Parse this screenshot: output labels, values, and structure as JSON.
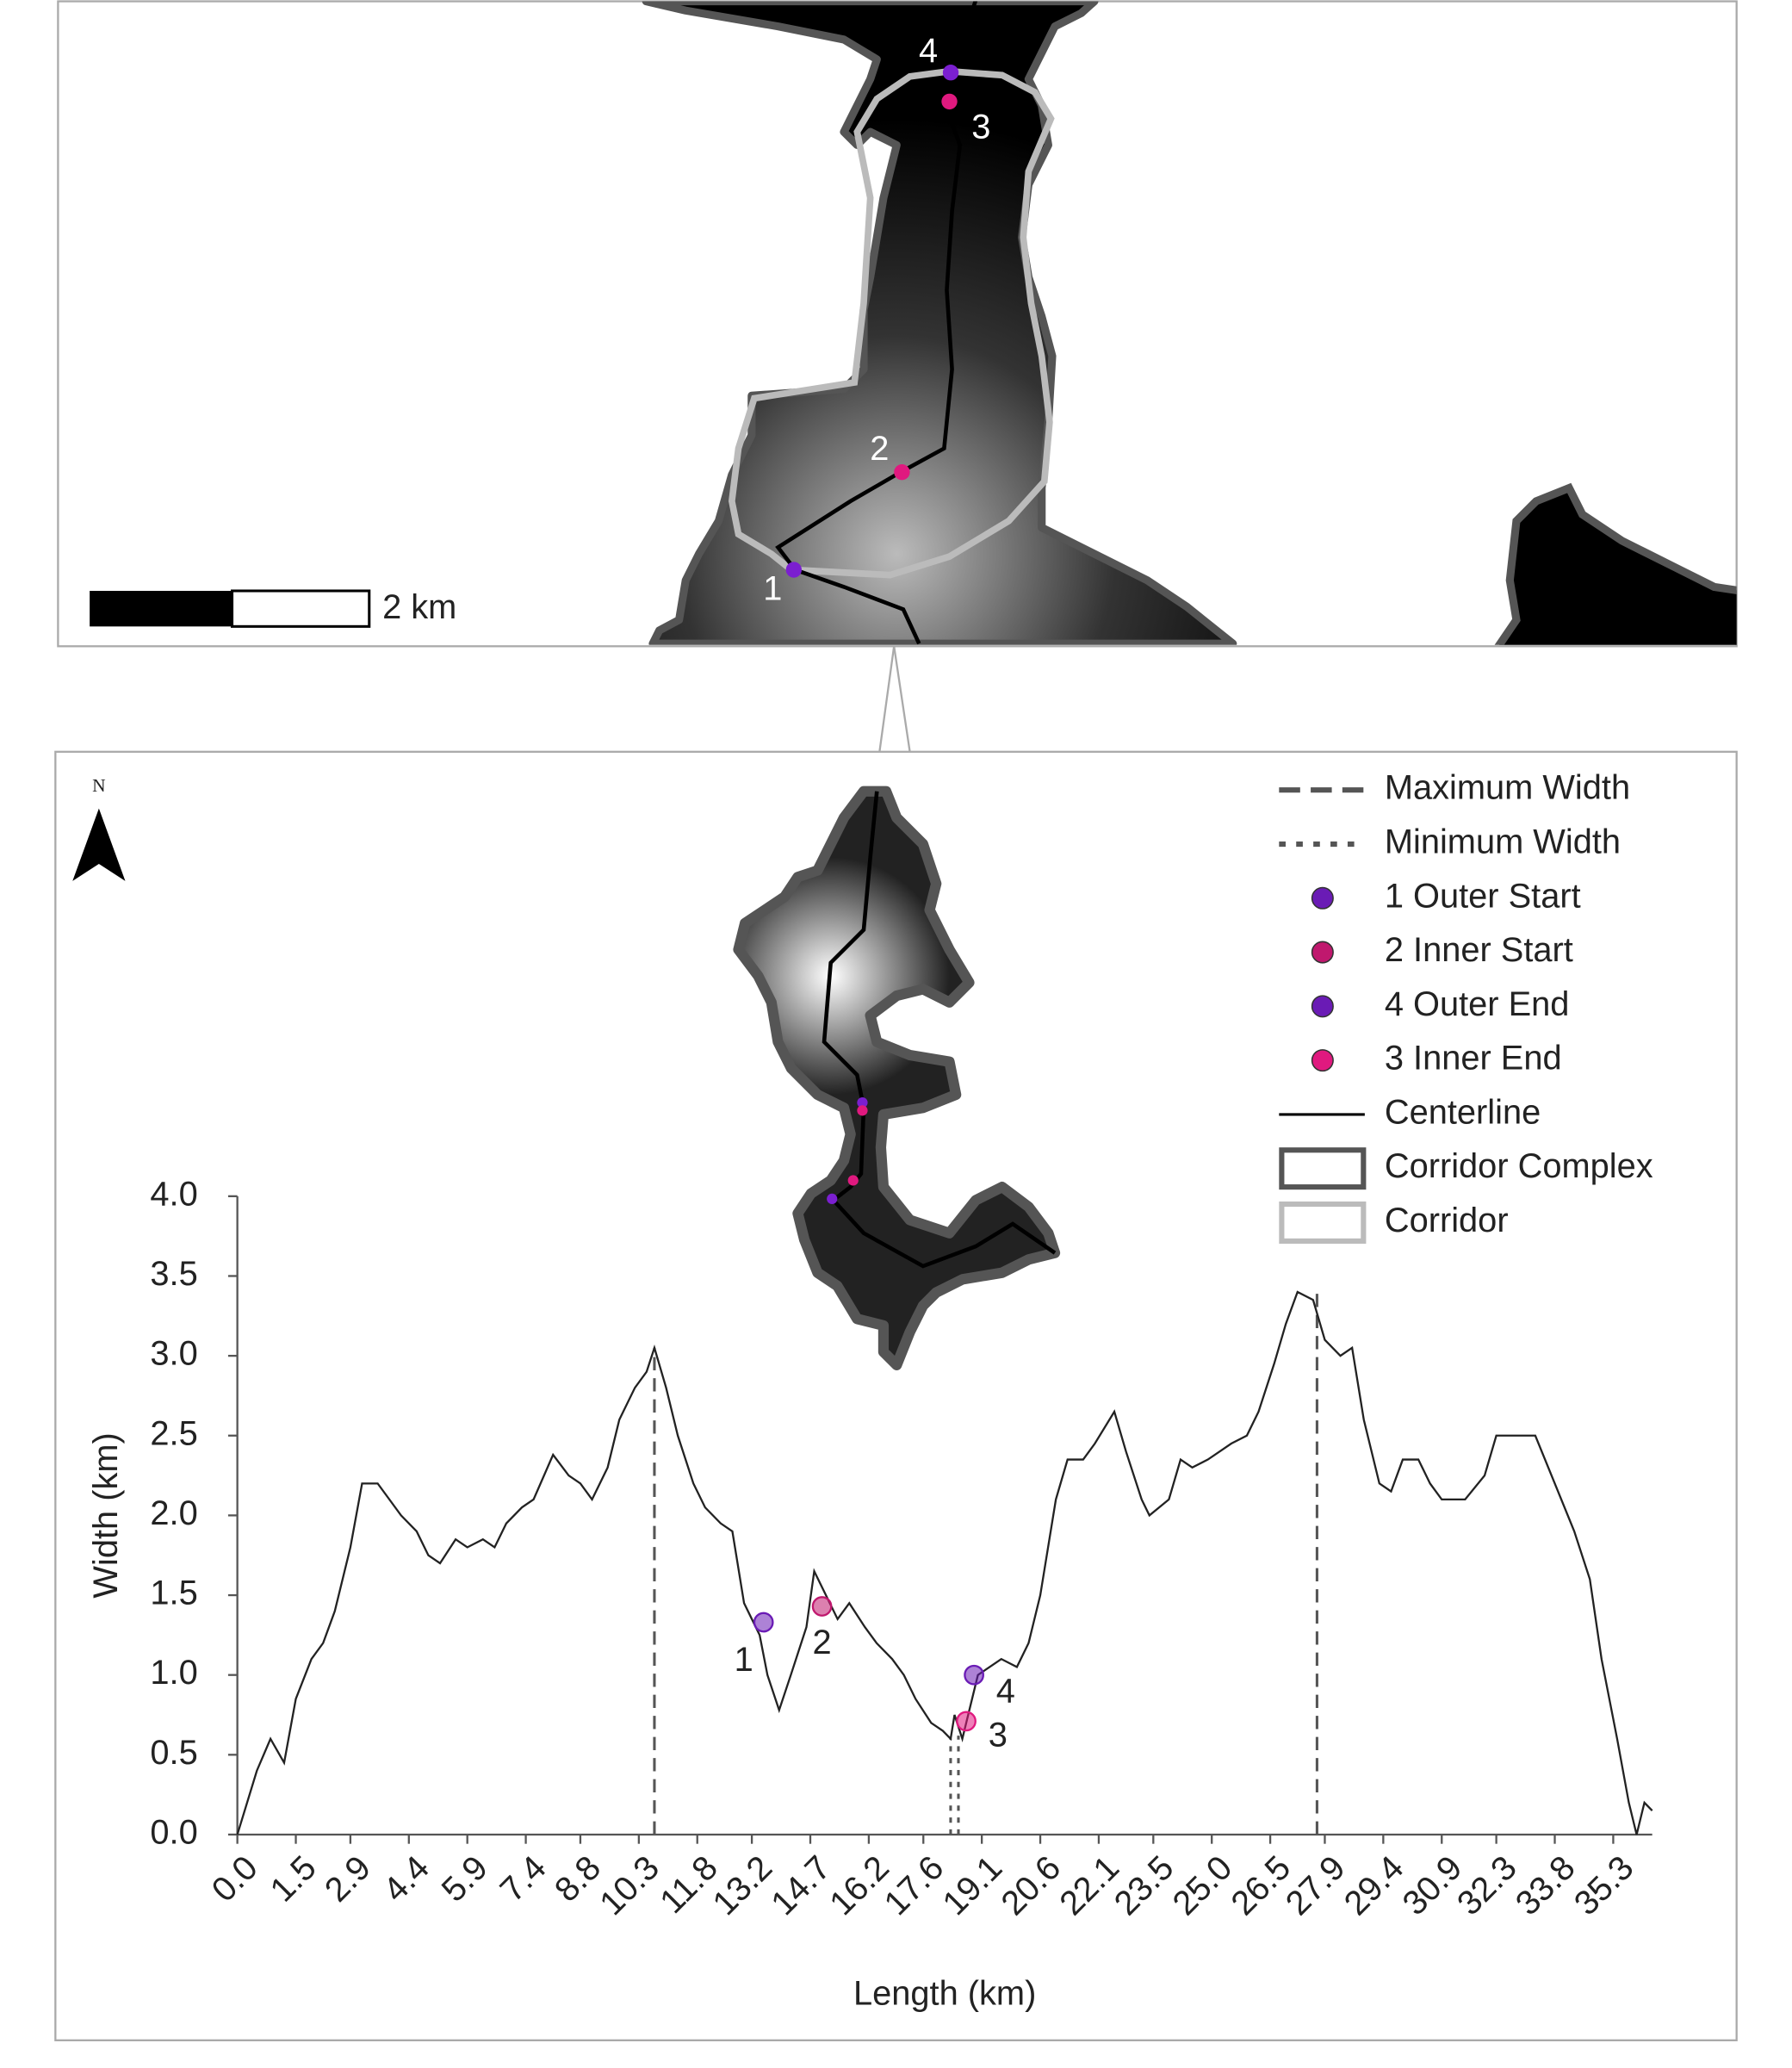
{
  "chart_data": {
    "type": "line",
    "x_label": "Length (km)",
    "y_label": "Width (km)",
    "xlim": [
      0,
      36.3
    ],
    "ylim": [
      0,
      4
    ],
    "xticks": [
      {
        "value": 0,
        "label": "0.0"
      },
      1.5,
      2.9,
      4.4,
      5.9,
      7.4,
      8.8,
      10.3,
      11.8,
      13.2,
      14.7,
      16.2,
      17.6,
      19.1,
      20.6,
      22.1,
      23.5,
      {
        "value": 25,
        "label": "25.0"
      },
      26.5,
      27.9,
      29.4,
      30.9,
      32.3,
      33.8,
      35.3
    ],
    "yticks": [
      {
        "value": 0,
        "label": "0.0"
      },
      0.5,
      {
        "value": 1,
        "label": "1.0"
      },
      1.5,
      {
        "value": 2,
        "label": "2.0"
      },
      2.5,
      {
        "value": 3,
        "label": "3.0"
      },
      3.5,
      {
        "value": 4,
        "label": "4.0"
      }
    ],
    "series": [
      {
        "color": "#222222",
        "x": [
          0,
          0.5,
          0.85,
          1.2,
          1.5,
          1.9,
          2.2,
          2.5,
          2.9,
          3.2,
          3.6,
          3.9,
          4.2,
          4.6,
          4.9,
          5.2,
          5.6,
          5.9,
          6.3,
          6.6,
          6.9,
          7.3,
          7.6,
          8.1,
          8.5,
          8.8,
          9.1,
          9.5,
          9.8,
          10.2,
          10.5,
          10.7,
          11.0,
          11.3,
          11.7,
          12.0,
          12.4,
          12.7,
          13.0,
          13.4,
          13.6,
          13.9,
          14.2,
          14.6,
          14.8,
          15.1,
          15.4,
          15.7,
          16.1,
          16.4,
          16.8,
          17.1,
          17.4,
          17.8,
          18.1,
          18.3,
          18.4,
          18.6,
          19.0,
          19.3,
          19.6,
          20.0,
          20.3,
          20.6,
          21.0,
          21.3,
          21.7,
          22.0,
          22.5,
          22.8,
          23.2,
          23.4,
          23.9,
          24.2,
          24.5,
          24.9,
          25.2,
          25.5,
          25.9,
          26.2,
          26.6,
          26.9,
          27.2,
          27.6,
          27.9,
          28.3,
          28.6,
          28.9,
          29.3,
          29.6,
          29.9,
          30.3,
          30.6,
          30.9,
          31.5,
          32.0,
          32.3,
          32.8,
          33.3,
          33.8,
          34.3,
          34.7,
          35.0,
          35.4,
          35.7,
          35.9,
          36.1,
          36.3
        ],
        "values": [
          0,
          0.4,
          0.6,
          0.45,
          0.85,
          1.1,
          1.2,
          1.4,
          1.8,
          2.2,
          2.2,
          2.1,
          2.0,
          1.9,
          1.75,
          1.7,
          1.85,
          1.8,
          1.85,
          1.8,
          1.95,
          2.05,
          2.1,
          2.38,
          2.25,
          2.2,
          2.1,
          2.3,
          2.6,
          2.8,
          2.9,
          3.05,
          2.8,
          2.5,
          2.2,
          2.05,
          1.95,
          1.9,
          1.45,
          1.25,
          1.0,
          0.78,
          1.0,
          1.3,
          1.65,
          1.5,
          1.35,
          1.45,
          1.3,
          1.2,
          1.1,
          1.0,
          0.85,
          0.7,
          0.65,
          0.6,
          0.75,
          0.6,
          1.0,
          1.05,
          1.1,
          1.05,
          1.2,
          1.5,
          2.1,
          2.35,
          2.35,
          2.45,
          2.65,
          2.4,
          2.1,
          2.0,
          2.1,
          2.35,
          2.3,
          2.35,
          2.4,
          2.45,
          2.5,
          2.65,
          2.95,
          3.2,
          3.4,
          3.35,
          3.1,
          3.0,
          3.05,
          2.6,
          2.2,
          2.15,
          2.35,
          2.35,
          2.2,
          2.1,
          2.1,
          2.25,
          2.5,
          2.5,
          2.5,
          2.2,
          1.9,
          1.6,
          1.1,
          0.6,
          0.2,
          0,
          0.2,
          0.15
        ]
      }
    ],
    "reference_lines": [
      {
        "name": "Maximum Width",
        "color": "#555555",
        "style": "dashed",
        "x": [
          10.7,
          27.7
        ],
        "values": [
          3.05,
          3.4
        ]
      },
      {
        "name": "Minimum Width",
        "color": "#555555",
        "style": "dotted",
        "x": [
          18.3,
          18.5
        ],
        "values": [
          0.6,
          0.62
        ]
      }
    ],
    "markers": [
      {
        "name": "1 Outer Start",
        "label": "1",
        "color": "#6a1bb5",
        "x": [
          13.5
        ],
        "values": [
          1.33
        ]
      },
      {
        "name": "2 Inner Start",
        "label": "2",
        "color": "#c0186e",
        "x": [
          15.0
        ],
        "values": [
          1.43
        ]
      },
      {
        "name": "4 Outer End",
        "label": "4",
        "color": "#6a1bb5",
        "x": [
          18.9
        ],
        "values": [
          1.0
        ]
      },
      {
        "name": "3 Inner End",
        "label": "3",
        "color": "#e0197f",
        "x": [
          18.7
        ],
        "values": [
          0.71
        ]
      }
    ]
  },
  "map": {
    "scale_label": "2 km",
    "north": "N",
    "point_labels": [
      "4",
      "3",
      "2",
      "1"
    ],
    "legend": [
      {
        "label": "Centerline",
        "color": "#000000"
      },
      {
        "label": "Corridor Complex",
        "color": "#555555"
      },
      {
        "label": "Corridor",
        "color": "#bbbbbb"
      }
    ]
  }
}
